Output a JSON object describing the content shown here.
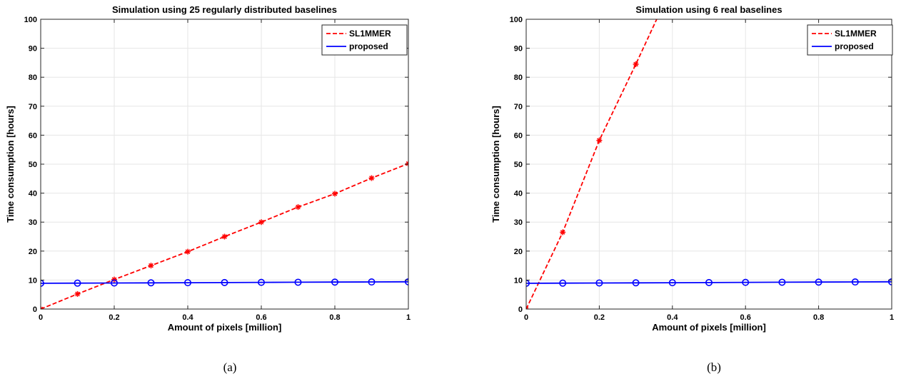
{
  "chart_data": [
    {
      "type": "line",
      "title": "Simulation using 25 regularly distributed baselines",
      "xlabel": "Amount of pixels [million]",
      "ylabel": "Time consumption [hours]",
      "caption": "(a)",
      "xlim": [
        0,
        1
      ],
      "ylim": [
        0,
        100
      ],
      "x_ticks": [
        0,
        0.2,
        0.4,
        0.6,
        0.8,
        1
      ],
      "x_tick_labels": [
        "0",
        "0.2",
        "0.4",
        "0.6",
        "0.8",
        "1"
      ],
      "y_ticks": [
        0,
        10,
        20,
        30,
        40,
        50,
        60,
        70,
        80,
        90,
        100
      ],
      "y_tick_labels": [
        "0",
        "10",
        "20",
        "30",
        "40",
        "50",
        "60",
        "70",
        "80",
        "90",
        "100"
      ],
      "grid": true,
      "legend_position": "top-right",
      "series": [
        {
          "name": "SL1MMER",
          "color": "#ff0000",
          "line_style": "dashed",
          "marker": "asterisk",
          "x": [
            0,
            0.1,
            0.2,
            0.3,
            0.4,
            0.5,
            0.6,
            0.7,
            0.8,
            0.9,
            1.0
          ],
          "y": [
            0,
            5.2,
            10.2,
            15.0,
            19.8,
            25.0,
            30.0,
            35.2,
            39.8,
            45.2,
            50.2
          ]
        },
        {
          "name": "proposed",
          "color": "#0000ff",
          "line_style": "solid",
          "marker": "circle",
          "x": [
            0,
            0.1,
            0.2,
            0.3,
            0.4,
            0.5,
            0.6,
            0.7,
            0.8,
            0.9,
            1.0
          ],
          "y": [
            8.9,
            8.95,
            9.0,
            9.05,
            9.1,
            9.15,
            9.2,
            9.25,
            9.3,
            9.35,
            9.4
          ]
        }
      ]
    },
    {
      "type": "line",
      "title": "Simulation using 6 real baselines",
      "xlabel": "Amount of pixels [million]",
      "ylabel": "Time consumption [hours]",
      "caption": "(b)",
      "xlim": [
        0,
        1
      ],
      "ylim": [
        0,
        100
      ],
      "x_ticks": [
        0,
        0.2,
        0.4,
        0.6,
        0.8,
        1
      ],
      "x_tick_labels": [
        "0",
        "0.2",
        "0.4",
        "0.6",
        "0.8",
        "1"
      ],
      "y_ticks": [
        0,
        10,
        20,
        30,
        40,
        50,
        60,
        70,
        80,
        90,
        100
      ],
      "y_tick_labels": [
        "0",
        "10",
        "20",
        "30",
        "40",
        "50",
        "60",
        "70",
        "80",
        "90",
        "100"
      ],
      "grid": true,
      "legend_position": "top-right",
      "series": [
        {
          "name": "SL1MMER",
          "color": "#ff0000",
          "line_style": "dashed",
          "marker": "asterisk",
          "x": [
            0,
            0.1,
            0.2,
            0.3
          ],
          "y": [
            0,
            26.5,
            58.2,
            84.5
          ],
          "line_x": [
            0,
            0.1,
            0.2,
            0.3,
            0.357
          ],
          "line_y": [
            0,
            26.5,
            58.2,
            84.5,
            100
          ]
        },
        {
          "name": "proposed",
          "color": "#0000ff",
          "line_style": "solid",
          "marker": "circle",
          "x": [
            0,
            0.1,
            0.2,
            0.3,
            0.4,
            0.5,
            0.6,
            0.7,
            0.8,
            0.9,
            1.0
          ],
          "y": [
            8.9,
            8.95,
            9.0,
            9.05,
            9.1,
            9.15,
            9.2,
            9.25,
            9.3,
            9.35,
            9.4
          ]
        }
      ]
    }
  ]
}
